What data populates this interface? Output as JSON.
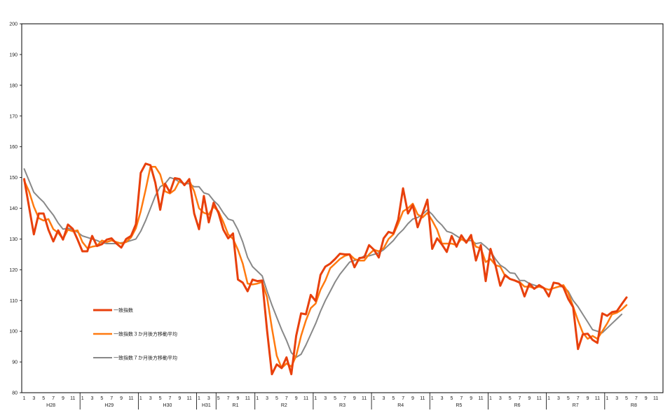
{
  "chart_data": {
    "type": "line",
    "title": "",
    "xlabel": "",
    "ylabel": "",
    "ylim": [
      80,
      200
    ],
    "yticks": [
      80,
      90,
      100,
      110,
      120,
      130,
      140,
      150,
      160,
      170,
      180,
      190,
      200
    ],
    "grid": false,
    "legend_position": "left-middle",
    "start": "H28-1",
    "month_ticks": [
      "1",
      "3",
      "5",
      "7",
      "9",
      "11"
    ],
    "eras": [
      {
        "label": "H28",
        "months": 12
      },
      {
        "label": "H29",
        "months": 12
      },
      {
        "label": "H30",
        "months": 12
      },
      {
        "label": "H31",
        "months": 4
      },
      {
        "label": "R1",
        "months": 8
      },
      {
        "label": "R2",
        "months": 12
      },
      {
        "label": "R3",
        "months": 12
      },
      {
        "label": "R4",
        "months": 12
      },
      {
        "label": "R5",
        "months": 12
      },
      {
        "label": "R6",
        "months": 12
      },
      {
        "label": "R7",
        "months": 12
      },
      {
        "label": "R8",
        "months": 12
      }
    ],
    "series": [
      {
        "name": "一致指数",
        "color": "#e8400c",
        "values": [
          149.5,
          140.5,
          131.5,
          138.3,
          138.3,
          133.0,
          129.2,
          132.8,
          129.8,
          134.7,
          133.3,
          129.8,
          126.0,
          126.0,
          131.0,
          127.7,
          128.3,
          129.8,
          130.2,
          128.5,
          127.2,
          130.0,
          131.0,
          134.8,
          151.5,
          154.5,
          154.0,
          148.3,
          139.5,
          148.0,
          145.2,
          149.8,
          149.5,
          147.5,
          149.5,
          138.3,
          133.2,
          144.0,
          135.4,
          141.8,
          138.5,
          133.0,
          130.2,
          131.8,
          116.8,
          115.8,
          113.0,
          116.8,
          116.3,
          116.5,
          100.2,
          86.0,
          89.2,
          88.0,
          91.5,
          86.0,
          98.5,
          105.8,
          105.5,
          111.8,
          109.8,
          118.3,
          121.0,
          122.0,
          123.5,
          125.2,
          125.0,
          125.0,
          120.8,
          123.8,
          124.0,
          128.0,
          126.5,
          124.0,
          130.2,
          132.3,
          131.8,
          136.3,
          146.5,
          138.3,
          141.0,
          133.8,
          138.3,
          142.8,
          126.8,
          130.2,
          128.2,
          125.8,
          131.0,
          127.5,
          131.2,
          128.8,
          131.3,
          123.0,
          128.0,
          116.3,
          126.8,
          121.5,
          114.8,
          118.3,
          117.0,
          116.5,
          115.8,
          111.3,
          115.5,
          113.8,
          115.0,
          114.0,
          111.3,
          115.8,
          115.5,
          114.3,
          110.5,
          107.8,
          94.2,
          99.0,
          99.2,
          97.2,
          96.2,
          105.8,
          105.0,
          106.2,
          106.5,
          108.8,
          111.0
        ]
      },
      {
        "name": "一致指数３か月後方移動平均",
        "color": "#ff7a10",
        "values": [
          149.0,
          145.5,
          140.5,
          136.8,
          136.0,
          136.5,
          133.2,
          132.0,
          130.0,
          133.0,
          132.5,
          132.8,
          129.0,
          127.0,
          127.5,
          127.8,
          129.5,
          129.0,
          129.5,
          129.0,
          128.5,
          129.0,
          130.5,
          133.5,
          139.0,
          146.0,
          153.5,
          153.5,
          151.0,
          145.5,
          144.8,
          146.0,
          149.0,
          147.8,
          149.0,
          145.5,
          140.0,
          138.5,
          138.0,
          140.5,
          139.0,
          135.5,
          131.5,
          130.0,
          126.5,
          122.0,
          115.5,
          115.2,
          115.5,
          116.0,
          111.0,
          101.0,
          92.0,
          88.0,
          89.5,
          88.5,
          92.0,
          98.5,
          103.5,
          107.5,
          109.0,
          113.5,
          116.5,
          120.5,
          122.0,
          123.5,
          124.5,
          125.0,
          123.5,
          123.0,
          123.0,
          125.0,
          126.5,
          126.0,
          127.0,
          130.0,
          131.5,
          135.0,
          139.0,
          140.0,
          141.5,
          138.0,
          137.0,
          138.5,
          136.0,
          133.0,
          128.5,
          128.5,
          128.5,
          128.0,
          130.0,
          129.0,
          130.5,
          127.5,
          127.0,
          122.5,
          123.5,
          121.5,
          121.0,
          118.0,
          117.0,
          116.5,
          116.0,
          114.5,
          114.5,
          114.0,
          114.5,
          114.0,
          113.5,
          114.0,
          114.5,
          115.0,
          112.5,
          108.0,
          103.5,
          99.5,
          97.5,
          98.5,
          97.5,
          100.0,
          102.5,
          105.5,
          106.0,
          107.0,
          108.5
        ]
      },
      {
        "name": "一致指数７か月後方移動平均",
        "color": "#888888",
        "values": [
          152.8,
          149.0,
          145.2,
          143.5,
          142.0,
          139.8,
          137.8,
          135.2,
          133.2,
          133.5,
          133.0,
          132.2,
          131.0,
          130.5,
          130.0,
          129.5,
          128.8,
          128.5,
          128.5,
          128.5,
          128.8,
          129.0,
          129.5,
          130.0,
          132.5,
          136.0,
          140.0,
          144.0,
          147.0,
          148.0,
          150.0,
          149.5,
          148.5,
          148.0,
          148.0,
          147.0,
          147.0,
          145.0,
          144.5,
          142.5,
          141.0,
          138.5,
          136.5,
          136.0,
          133.0,
          129.0,
          124.0,
          121.0,
          119.5,
          118.0,
          113.0,
          108.5,
          104.5,
          100.5,
          97.0,
          93.0,
          91.5,
          92.5,
          95.5,
          99.0,
          102.5,
          106.5,
          110.0,
          113.0,
          116.0,
          118.5,
          120.5,
          122.5,
          123.0,
          123.5,
          124.5,
          124.5,
          125.0,
          125.5,
          126.5,
          128.0,
          129.5,
          131.5,
          133.0,
          135.0,
          136.5,
          137.0,
          138.0,
          139.5,
          138.0,
          136.0,
          134.5,
          132.5,
          132.0,
          131.0,
          130.0,
          129.5,
          129.5,
          128.5,
          128.8,
          127.5,
          126.0,
          123.5,
          121.5,
          120.5,
          119.0,
          118.8,
          116.5,
          116.5,
          115.5,
          115.0,
          114.5,
          114.0,
          113.5,
          114.0,
          114.5,
          114.5,
          113.0,
          110.0,
          108.0,
          105.5,
          103.0,
          100.5,
          100.0,
          99.5,
          101.0,
          102.5,
          104.0,
          105.5
        ]
      }
    ]
  }
}
